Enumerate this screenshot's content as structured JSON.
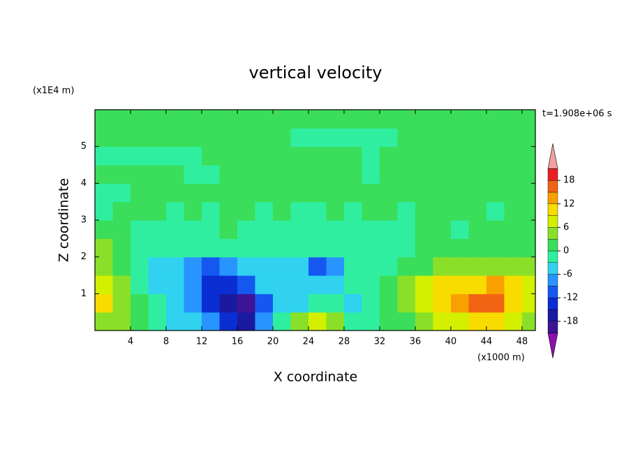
{
  "chart_data": {
    "type": "contour",
    "title": "vertical velocity",
    "x_label": "X coordinate",
    "y_label": "Z coordinate",
    "x_unit": "(x1000 m)",
    "y_unit": "(x1E4 m)",
    "annotation": "t=1.908e+06 s",
    "xlim": [
      0,
      49.5
    ],
    "xticks": [
      4,
      8,
      12,
      16,
      20,
      24,
      28,
      32,
      36,
      40,
      44,
      48
    ],
    "ylim": [
      0,
      6
    ],
    "yticks": [
      1,
      2,
      3,
      4,
      5
    ],
    "x": [
      1,
      3,
      5,
      7,
      9,
      11,
      13,
      15,
      17,
      19,
      21,
      23,
      25,
      27,
      29,
      31,
      33,
      35,
      37,
      39,
      41,
      43,
      45,
      47,
      49
    ],
    "y": [
      0.25,
      0.75,
      1.25,
      1.75,
      2.25,
      2.75,
      3.25,
      3.75,
      4.25,
      4.75,
      5.25,
      5.75
    ],
    "values": [
      [
        5,
        3,
        0,
        -2,
        -4,
        -6,
        -9,
        -13,
        -17,
        -7,
        -3,
        5,
        7,
        3,
        -3,
        -2,
        0,
        2,
        4,
        6,
        8,
        9,
        9,
        6,
        4
      ],
      [
        9,
        5,
        0,
        -3,
        -5,
        -9,
        -14,
        -17,
        -19,
        -11,
        -6,
        -4,
        -3,
        -3,
        -4,
        -2,
        0,
        3,
        6,
        10,
        12,
        15,
        16,
        10,
        6
      ],
      [
        7,
        4,
        -1,
        -4,
        -6,
        -9,
        -13,
        -15,
        -12,
        -6,
        -4,
        -5,
        -5,
        -4,
        -3,
        -1,
        1,
        3,
        6,
        9,
        10,
        11,
        12,
        10,
        7
      ],
      [
        4,
        2,
        -2,
        -4,
        -5,
        -8,
        -10,
        -8,
        -5,
        -4,
        -4,
        -5,
        -10,
        -8,
        -3,
        -2,
        -1,
        1,
        2,
        3,
        4,
        4,
        4,
        4,
        3
      ],
      [
        3,
        2,
        -1,
        -2,
        -2,
        -1,
        -3,
        -2,
        -2,
        -1,
        -2,
        -2,
        -2,
        -1,
        -2,
        -1,
        -2,
        -1,
        1,
        1,
        1,
        1,
        1,
        2,
        2
      ],
      [
        1,
        1,
        -1,
        -1,
        -1,
        -1,
        -1,
        1,
        -1,
        -1,
        -1,
        -1,
        -1,
        -1,
        -1,
        -1,
        -1,
        -1,
        1,
        1,
        -1,
        1,
        1,
        1,
        1
      ],
      [
        -1,
        1,
        1,
        1,
        -1,
        1,
        -1,
        1,
        1,
        -1,
        1,
        -1,
        -1,
        1,
        -1,
        1,
        1,
        -1,
        1,
        1,
        1,
        1,
        -1,
        1,
        1
      ],
      [
        -1,
        -1,
        1,
        1,
        1,
        1,
        1,
        1,
        1,
        1,
        1,
        1,
        1,
        1,
        1,
        1,
        1,
        1,
        1,
        1,
        1,
        1,
        1,
        1,
        1
      ],
      [
        1,
        1,
        1,
        1,
        1,
        -1,
        -1,
        1,
        1,
        1,
        1,
        1,
        1,
        1,
        1,
        -1,
        1,
        1,
        1,
        1,
        1,
        1,
        1,
        1,
        1
      ],
      [
        -1,
        -1,
        -1,
        -1,
        -1,
        -1,
        1,
        1,
        1,
        1,
        1,
        1,
        1,
        1,
        1,
        -1,
        1,
        1,
        1,
        1,
        1,
        1,
        1,
        1,
        1
      ],
      [
        1,
        1,
        1,
        1,
        1,
        1,
        1,
        1,
        1,
        1,
        1,
        -1,
        -1,
        -1,
        -1,
        -1,
        -1,
        1,
        1,
        1,
        1,
        1,
        1,
        1,
        1
      ],
      [
        1,
        1,
        1,
        1,
        1,
        1,
        1,
        1,
        1,
        1,
        1,
        1,
        1,
        1,
        1,
        1,
        1,
        1,
        1,
        1,
        1,
        1,
        1,
        1,
        1
      ]
    ],
    "colorbar": {
      "levels": [
        -21,
        -18,
        -15,
        -12,
        -9,
        -6,
        -3,
        0,
        3,
        6,
        9,
        12,
        15,
        18,
        21
      ],
      "colors": [
        "#3c1496",
        "#1a1aa0",
        "#0a2ed2",
        "#1458f0",
        "#2894ff",
        "#30d2f0",
        "#30eea0",
        "#3ade5a",
        "#8ae028",
        "#d2f000",
        "#f8dc00",
        "#f8a000",
        "#f06414",
        "#e82020"
      ],
      "under_color": "#8c10b0",
      "over_color": "#f0a0a0",
      "ticks": [
        -18,
        -12,
        -6,
        0,
        6,
        12,
        18
      ]
    }
  }
}
